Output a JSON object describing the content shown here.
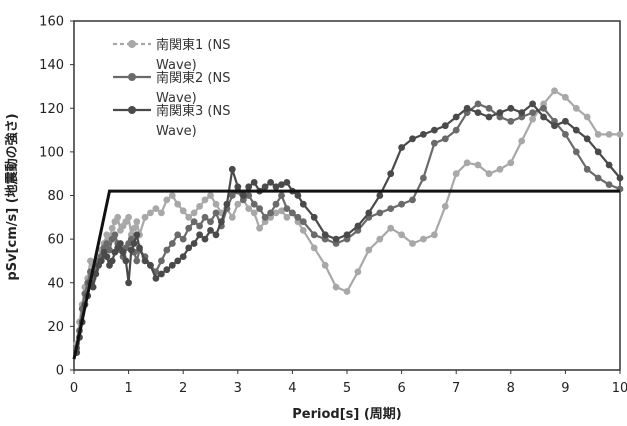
{
  "chart_data": {
    "type": "line",
    "xlabel": "Period[s] (周期)",
    "ylabel": "pSv[cm/s] (地震動の強さ)",
    "xlim": [
      0,
      10
    ],
    "ylim": [
      0,
      160
    ],
    "x_ticks": [
      "0",
      "1",
      "2",
      "3",
      "4",
      "5",
      "6",
      "7",
      "8",
      "9",
      "10"
    ],
    "y_ticks": [
      "0",
      "20",
      "40",
      "60",
      "80",
      "100",
      "120",
      "140",
      "160"
    ],
    "grid": false,
    "legend_position": "top-left",
    "reference_line": {
      "color": "#111111",
      "x": [
        0,
        0.65,
        10
      ],
      "y": [
        5,
        82,
        82
      ]
    },
    "series": [
      {
        "name_lines": [
          "南関東1 (NS",
          "Wave)"
        ],
        "color": "#a8a8a8",
        "x": [
          0.05,
          0.1,
          0.15,
          0.2,
          0.25,
          0.3,
          0.35,
          0.4,
          0.45,
          0.5,
          0.55,
          0.6,
          0.65,
          0.7,
          0.75,
          0.8,
          0.85,
          0.9,
          0.95,
          1.0,
          1.05,
          1.1,
          1.15,
          1.2,
          1.3,
          1.4,
          1.5,
          1.6,
          1.7,
          1.8,
          1.9,
          2.0,
          2.1,
          2.2,
          2.3,
          2.4,
          2.5,
          2.6,
          2.7,
          2.8,
          2.9,
          3.0,
          3.1,
          3.2,
          3.3,
          3.4,
          3.5,
          3.6,
          3.7,
          3.8,
          3.9,
          4.0,
          4.1,
          4.2,
          4.4,
          4.6,
          4.8,
          5.0,
          5.2,
          5.4,
          5.6,
          5.8,
          6.0,
          6.2,
          6.4,
          6.6,
          6.8,
          7.0,
          7.2,
          7.4,
          7.6,
          7.8,
          8.0,
          8.2,
          8.4,
          8.6,
          8.8,
          9.0,
          9.2,
          9.4,
          9.6,
          9.8,
          10.0
        ],
        "y": [
          12,
          22,
          30,
          38,
          42,
          50,
          45,
          48,
          52,
          55,
          58,
          62,
          60,
          65,
          68,
          70,
          64,
          66,
          68,
          70,
          62,
          65,
          68,
          62,
          70,
          72,
          74,
          72,
          78,
          80,
          76,
          73,
          70,
          72,
          75,
          78,
          80,
          76,
          72,
          74,
          70,
          76,
          78,
          74,
          72,
          65,
          68,
          70,
          72,
          73,
          70,
          72,
          68,
          64,
          56,
          48,
          38,
          36,
          45,
          55,
          60,
          65,
          62,
          58,
          60,
          62,
          75,
          90,
          95,
          94,
          90,
          92,
          95,
          105,
          115,
          122,
          128,
          125,
          120,
          116,
          108,
          108,
          108
        ]
      },
      {
        "name_lines": [
          "南関東2 (NS",
          "Wave)"
        ],
        "color": "#6a6a6a",
        "x": [
          0.05,
          0.1,
          0.15,
          0.2,
          0.25,
          0.3,
          0.35,
          0.4,
          0.45,
          0.5,
          0.55,
          0.6,
          0.65,
          0.7,
          0.75,
          0.8,
          0.85,
          0.9,
          0.95,
          1.0,
          1.05,
          1.1,
          1.15,
          1.2,
          1.3,
          1.4,
          1.5,
          1.6,
          1.7,
          1.8,
          1.9,
          2.0,
          2.1,
          2.2,
          2.3,
          2.4,
          2.5,
          2.6,
          2.7,
          2.8,
          2.9,
          3.0,
          3.1,
          3.2,
          3.3,
          3.4,
          3.5,
          3.6,
          3.7,
          3.8,
          3.9,
          4.0,
          4.1,
          4.2,
          4.4,
          4.6,
          4.8,
          5.0,
          5.2,
          5.4,
          5.6,
          5.8,
          6.0,
          6.2,
          6.4,
          6.6,
          6.8,
          7.0,
          7.2,
          7.4,
          7.6,
          7.8,
          8.0,
          8.2,
          8.4,
          8.6,
          8.8,
          9.0,
          9.2,
          9.4,
          9.6,
          9.8,
          10.0
        ],
        "y": [
          10,
          18,
          28,
          35,
          40,
          45,
          42,
          46,
          50,
          52,
          56,
          58,
          55,
          60,
          62,
          58,
          55,
          52,
          56,
          58,
          60,
          54,
          50,
          55,
          52,
          48,
          45,
          50,
          55,
          58,
          62,
          60,
          65,
          68,
          66,
          70,
          68,
          72,
          66,
          74,
          80,
          82,
          78,
          80,
          76,
          74,
          70,
          72,
          76,
          80,
          74,
          72,
          70,
          68,
          62,
          60,
          58,
          60,
          64,
          70,
          72,
          74,
          76,
          78,
          88,
          104,
          106,
          110,
          118,
          122,
          120,
          116,
          114,
          116,
          118,
          120,
          114,
          108,
          100,
          92,
          88,
          85,
          83
        ]
      },
      {
        "name_lines": [
          "南関東3 (NS",
          "Wave)"
        ],
        "color": "#4a4a4a",
        "x": [
          0.05,
          0.1,
          0.15,
          0.2,
          0.25,
          0.3,
          0.35,
          0.4,
          0.45,
          0.5,
          0.55,
          0.6,
          0.65,
          0.7,
          0.75,
          0.8,
          0.85,
          0.9,
          0.95,
          1.0,
          1.05,
          1.1,
          1.15,
          1.2,
          1.3,
          1.4,
          1.5,
          1.6,
          1.7,
          1.8,
          1.9,
          2.0,
          2.1,
          2.2,
          2.3,
          2.4,
          2.5,
          2.6,
          2.7,
          2.8,
          2.9,
          3.0,
          3.1,
          3.2,
          3.3,
          3.4,
          3.5,
          3.6,
          3.7,
          3.8,
          3.9,
          4.0,
          4.1,
          4.2,
          4.4,
          4.6,
          4.8,
          5.0,
          5.2,
          5.4,
          5.6,
          5.8,
          6.0,
          6.2,
          6.4,
          6.6,
          6.8,
          7.0,
          7.2,
          7.4,
          7.6,
          7.8,
          8.0,
          8.2,
          8.4,
          8.6,
          8.8,
          9.0,
          9.2,
          9.4,
          9.6,
          9.8,
          10.0
        ],
        "y": [
          8,
          15,
          22,
          30,
          34,
          40,
          38,
          44,
          48,
          50,
          54,
          52,
          48,
          50,
          54,
          56,
          58,
          54,
          50,
          40,
          55,
          58,
          62,
          56,
          50,
          48,
          42,
          44,
          46,
          48,
          50,
          52,
          56,
          58,
          62,
          60,
          64,
          62,
          68,
          76,
          92,
          84,
          80,
          84,
          86,
          82,
          84,
          86,
          84,
          85,
          86,
          82,
          80,
          76,
          70,
          62,
          60,
          62,
          66,
          72,
          80,
          90,
          102,
          106,
          108,
          110,
          112,
          116,
          120,
          118,
          116,
          118,
          120,
          118,
          122,
          116,
          112,
          114,
          110,
          106,
          100,
          94,
          88
        ]
      }
    ]
  }
}
